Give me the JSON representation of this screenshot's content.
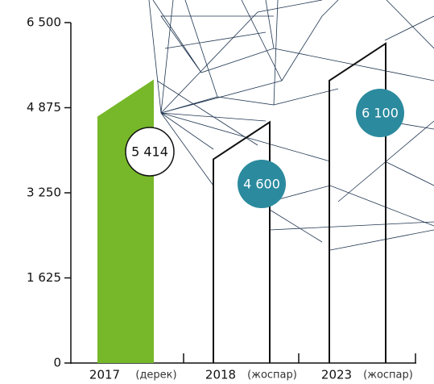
{
  "chart_data": {
    "type": "bar",
    "categories": [
      "2017",
      "2018",
      "2023"
    ],
    "category_notes": [
      "(дерек)",
      "(жоспар)",
      "(жоспар)"
    ],
    "values": [
      5414,
      4600,
      6100
    ],
    "value_labels": [
      "5 414",
      "4 600",
      "6 100"
    ],
    "colors": [
      "#76b82a",
      "none",
      "none"
    ],
    "label_colors": [
      "#ffffff",
      "#2b8a9e",
      "#2b8a9e"
    ],
    "ylim": [
      0,
      6500
    ],
    "yticks": [
      0,
      {
        "value": 1625,
        "label": "1 625"
      },
      {
        "value": 3250,
        "label": "3 250"
      },
      {
        "value": 4875,
        "label": "4 875"
      },
      {
        "value": 6500,
        "label": "6 500"
      }
    ]
  }
}
